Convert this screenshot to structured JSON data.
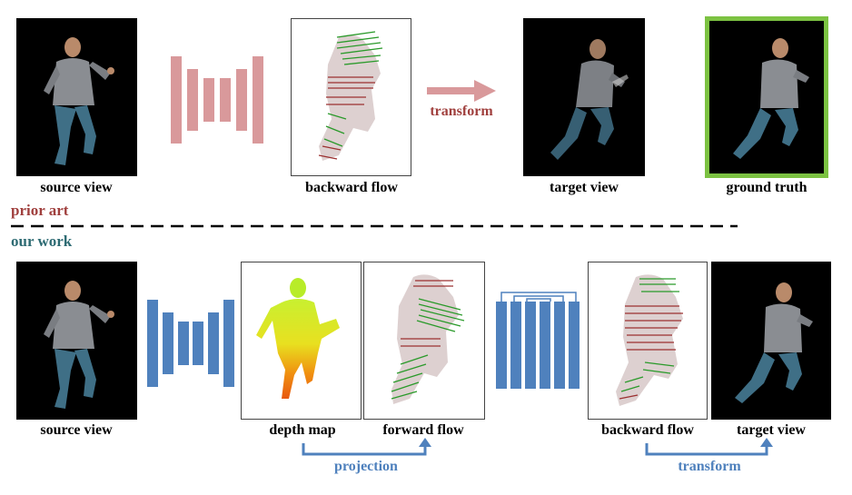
{
  "prior_art": {
    "label": "prior art",
    "color": "#a0403e",
    "captions": {
      "source_view": "source view",
      "backward_flow": "backward flow",
      "target_view": "target view",
      "ground_truth": "ground truth"
    },
    "arrow_label": "transform",
    "network_color": "#d9999b",
    "ground_truth_border": "#7cc242"
  },
  "our_work": {
    "label": "our work",
    "color": "#2e6b73",
    "captions": {
      "source_view": "source view",
      "depth_map": "depth map",
      "forward_flow": "forward flow",
      "backward_flow": "backward flow",
      "target_view": "target view"
    },
    "projection_label": "projection",
    "transform_label": "transform",
    "network_color": "#4f81bd",
    "arrow_color": "#4f81bd"
  }
}
